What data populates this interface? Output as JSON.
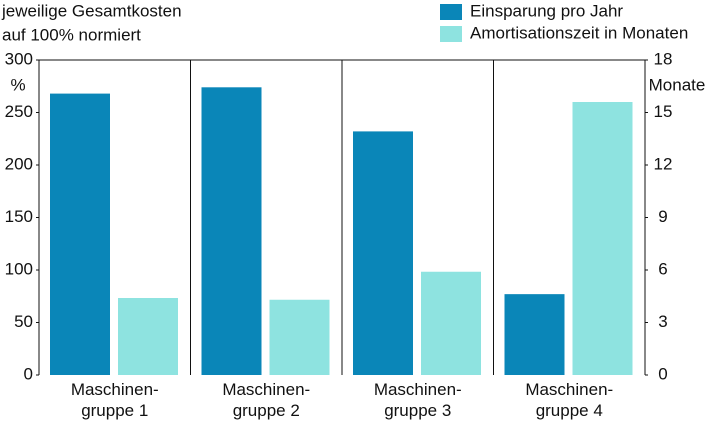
{
  "chart_data": {
    "type": "bar",
    "y_label": [
      "jeweilige Gesamtkosten",
      "auf 100% normiert"
    ],
    "y_unit": "%",
    "y2_unit": "Monate",
    "categories": [
      "Maschinen-\ngruppe 1",
      "Maschinen-\ngruppe 2",
      "Maschinen-\ngruppe 3",
      "Maschinen-\ngruppe 4"
    ],
    "series": [
      {
        "name": "Einsparung pro Jahr",
        "color": "#0a86b8",
        "values": [
          268,
          274,
          232,
          77
        ]
      },
      {
        "name": "Amortisationszeit in Monaten",
        "color": "#8ee3e0",
        "axis": "y2",
        "values": [
          4.4,
          4.3,
          5.9,
          15.6
        ]
      }
    ],
    "ylim": [
      0,
      300
    ],
    "yticks": [
      0,
      50,
      100,
      150,
      200,
      250,
      300
    ],
    "y2lim": [
      0,
      18
    ],
    "y2ticks": [
      0,
      3,
      6,
      9,
      12,
      15,
      18
    ],
    "legend": "top-right",
    "grid": false
  }
}
